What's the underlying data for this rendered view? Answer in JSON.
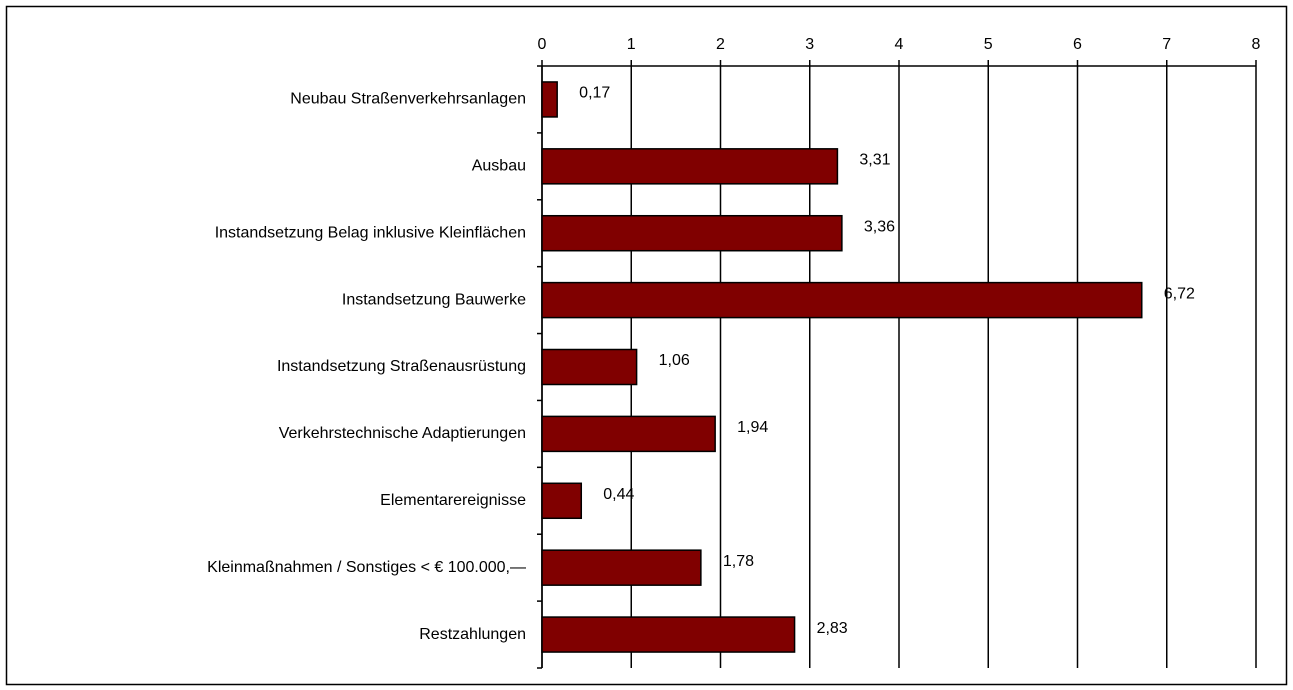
{
  "chart_data": {
    "type": "bar",
    "orientation": "horizontal",
    "categories": [
      "Neubau Straßenverkehrsanlagen",
      "Ausbau",
      "Instandsetzung Belag inklusive Kleinflächen",
      "Instandsetzung Bauwerke",
      "Instandsetzung Straßenausrüstung",
      "Verkehrstechnische Adaptierungen",
      "Elementarereignisse",
      "Kleinmaßnahmen / Sonstiges < € 100.000,—",
      "Restzahlungen"
    ],
    "values": [
      0.17,
      3.31,
      3.36,
      6.72,
      1.06,
      1.94,
      0.44,
      1.78,
      2.83
    ],
    "value_labels": [
      "0,17",
      "3,31",
      "3,36",
      "6,72",
      "1,06",
      "1,94",
      "0,44",
      "1,78",
      "2,83"
    ],
    "color": "#800000",
    "xlim": [
      0,
      8
    ],
    "xticks": [
      0,
      1,
      2,
      3,
      4,
      5,
      6,
      7,
      8
    ],
    "grid": true
  }
}
